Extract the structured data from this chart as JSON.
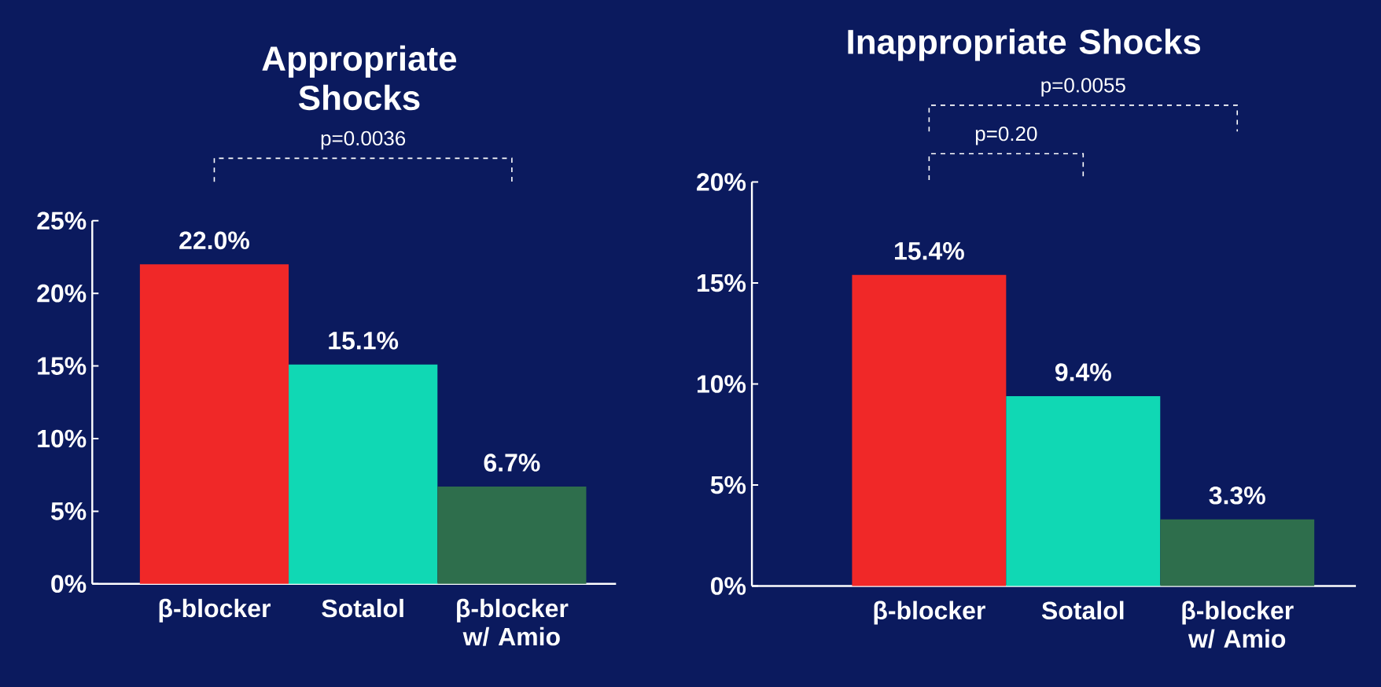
{
  "chart_data": [
    {
      "type": "bar",
      "title": "Appropriate Shocks",
      "categories": [
        "β-blocker",
        "Sotalol",
        "β-blocker w/ Amio"
      ],
      "values": [
        22.0,
        15.1,
        6.7
      ],
      "colors": [
        "#f02828",
        "#10d8b4",
        "#2e6e4c"
      ],
      "value_labels": [
        "22.0%",
        "15.1%",
        "6.7%"
      ],
      "ylim": [
        0,
        25
      ],
      "yticks": [
        {
          "value": 0,
          "label": "0%"
        },
        {
          "value": 5,
          "label": "5%"
        },
        {
          "value": 10,
          "label": "10%"
        },
        {
          "value": 15,
          "label": "15%"
        },
        {
          "value": 20,
          "label": "20%"
        },
        {
          "value": 25,
          "label": "25%"
        }
      ],
      "annotations": [
        "p=0.0036"
      ],
      "grid": false,
      "legend": false
    },
    {
      "type": "bar",
      "title": "Inappropriate Shocks",
      "categories": [
        "β-blocker",
        "Sotalol",
        "β-blocker w/ Amio"
      ],
      "values": [
        15.4,
        9.4,
        3.3
      ],
      "colors": [
        "#f02828",
        "#10d8b4",
        "#2e6e4c"
      ],
      "value_labels": [
        "15.4%",
        "9.4%",
        "3.3%"
      ],
      "ylim": [
        0,
        20
      ],
      "yticks": [
        {
          "value": 0,
          "label": "0%"
        },
        {
          "value": 5,
          "label": "5%"
        },
        {
          "value": 10,
          "label": "10%"
        },
        {
          "value": 15,
          "label": "15%"
        },
        {
          "value": 20,
          "label": "20%"
        }
      ],
      "annotations": [
        "p=0.20",
        "p=0.0055"
      ],
      "grid": false,
      "legend": false
    }
  ]
}
